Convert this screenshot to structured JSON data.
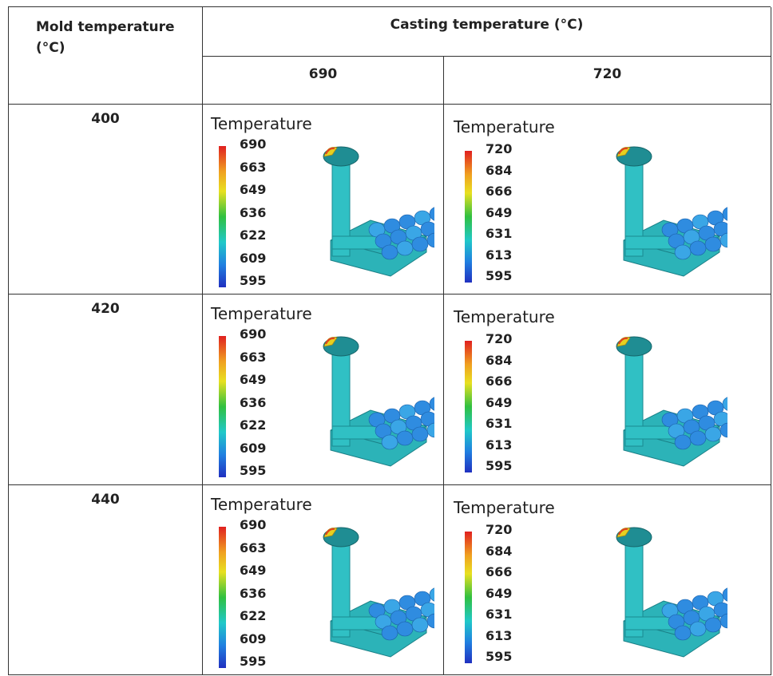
{
  "table": {
    "header": {
      "mold_temperature": "Mold temperature (°C)",
      "casting_temperature": "Casting temperature (°C)",
      "columns": [
        "690",
        "720"
      ]
    },
    "rows": [
      {
        "mold_temperature": "400",
        "cells": [
          {
            "legend_title": "Temperature",
            "legend_labels": [
              "690",
              "663",
              "649",
              "636",
              "622",
              "609",
              "595"
            ]
          },
          {
            "legend_title": "Temperature",
            "legend_labels": [
              "720",
              "684",
              "666",
              "649",
              "631",
              "613",
              "595"
            ]
          }
        ]
      },
      {
        "mold_temperature": "420",
        "cells": [
          {
            "legend_title": "Temperature",
            "legend_labels": [
              "690",
              "663",
              "649",
              "636",
              "622",
              "609",
              "595"
            ]
          },
          {
            "legend_title": "Temperature",
            "legend_labels": [
              "720",
              "684",
              "666",
              "649",
              "631",
              "613",
              "595"
            ]
          }
        ]
      },
      {
        "mold_temperature": "440",
        "cells": [
          {
            "legend_title": "Temperature",
            "legend_labels": [
              "690",
              "663",
              "649",
              "636",
              "622",
              "609",
              "595"
            ]
          },
          {
            "legend_title": "Temperature",
            "legend_labels": [
              "720",
              "684",
              "666",
              "649",
              "631",
              "613",
              "595"
            ]
          }
        ]
      }
    ]
  }
}
